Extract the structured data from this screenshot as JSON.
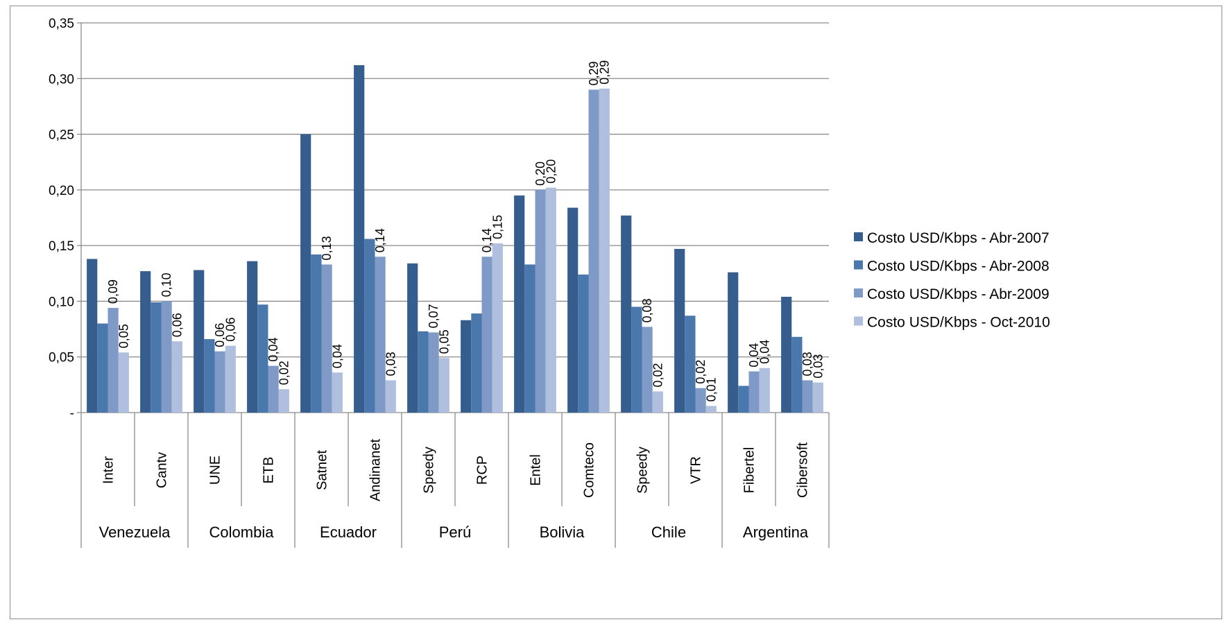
{
  "chart_data": {
    "type": "bar",
    "title": "",
    "xlabel": "",
    "ylabel": "",
    "ylim": [
      0,
      0.35
    ],
    "yticks": [
      {
        "value": 0,
        "label": "-"
      },
      {
        "value": 0.05,
        "label": "0,05"
      },
      {
        "value": 0.1,
        "label": "0,10"
      },
      {
        "value": 0.15,
        "label": "0,15"
      },
      {
        "value": 0.2,
        "label": "0,20"
      },
      {
        "value": 0.25,
        "label": "0,25"
      },
      {
        "value": 0.3,
        "label": "0,30"
      },
      {
        "value": 0.35,
        "label": "0,35"
      }
    ],
    "grid": true,
    "legend_position": "right",
    "categories": [
      "Inter",
      "Cantv",
      "UNE",
      "ETB",
      "Satnet",
      "Andinanet",
      "Speedy",
      "RCP",
      "Entel",
      "Comteco",
      "Speedy",
      "VTR",
      "Fibertel",
      "Cibersoft"
    ],
    "groups": [
      {
        "name": "Venezuela",
        "size": 2
      },
      {
        "name": "Colombia",
        "size": 2
      },
      {
        "name": "Ecuador",
        "size": 2
      },
      {
        "name": "Perú",
        "size": 2
      },
      {
        "name": "Bolivia",
        "size": 2
      },
      {
        "name": "Chile",
        "size": 2
      },
      {
        "name": "Argentina",
        "size": 2
      }
    ],
    "series": [
      {
        "name": "Costo USD/Kbps - Abr-2007",
        "color": "#355d8e",
        "values": [
          0.138,
          0.127,
          0.128,
          0.136,
          0.25,
          0.312,
          0.134,
          0.083,
          0.195,
          0.184,
          0.177,
          0.147,
          0.126,
          0.104
        ]
      },
      {
        "name": "Costo USD/Kbps - Abr-2008",
        "color": "#4a77ac",
        "values": [
          0.08,
          0.099,
          0.066,
          0.097,
          0.142,
          0.156,
          0.073,
          0.089,
          0.133,
          0.124,
          0.095,
          0.087,
          0.024,
          0.068
        ]
      },
      {
        "name": "Costo USD/Kbps - Abr-2009",
        "color": "#7f9ac6",
        "values": [
          0.094,
          0.1,
          0.055,
          0.042,
          0.133,
          0.14,
          0.072,
          0.14,
          0.2,
          0.29,
          0.077,
          0.022,
          0.037,
          0.029
        ]
      },
      {
        "name": "Costo USD/Kbps - Oct-2010",
        "color": "#afbfdd",
        "values": [
          0.054,
          0.064,
          0.06,
          0.021,
          0.036,
          0.029,
          0.049,
          0.152,
          0.202,
          0.291,
          0.019,
          0.006,
          0.04,
          0.027
        ]
      }
    ],
    "data_labels": [
      {
        "category_index": 0,
        "series_index": 2,
        "text": "0,09"
      },
      {
        "category_index": 0,
        "series_index": 3,
        "text": "0,05"
      },
      {
        "category_index": 1,
        "series_index": 2,
        "text": "0,10"
      },
      {
        "category_index": 1,
        "series_index": 3,
        "text": "0,06"
      },
      {
        "category_index": 2,
        "series_index": 2,
        "text": "0,06"
      },
      {
        "category_index": 2,
        "series_index": 3,
        "text": "0,06"
      },
      {
        "category_index": 3,
        "series_index": 2,
        "text": "0,04"
      },
      {
        "category_index": 3,
        "series_index": 3,
        "text": "0,02"
      },
      {
        "category_index": 4,
        "series_index": 2,
        "text": "0,13"
      },
      {
        "category_index": 4,
        "series_index": 3,
        "text": "0,04"
      },
      {
        "category_index": 5,
        "series_index": 2,
        "text": "0,14"
      },
      {
        "category_index": 5,
        "series_index": 3,
        "text": "0,03"
      },
      {
        "category_index": 6,
        "series_index": 2,
        "text": "0,07"
      },
      {
        "category_index": 6,
        "series_index": 3,
        "text": "0,05"
      },
      {
        "category_index": 7,
        "series_index": 2,
        "text": "0,14"
      },
      {
        "category_index": 7,
        "series_index": 3,
        "text": "0,15"
      },
      {
        "category_index": 8,
        "series_index": 2,
        "text": "0,20"
      },
      {
        "category_index": 8,
        "series_index": 3,
        "text": "0,20"
      },
      {
        "category_index": 9,
        "series_index": 2,
        "text": "0,29"
      },
      {
        "category_index": 9,
        "series_index": 3,
        "text": "0,29"
      },
      {
        "category_index": 10,
        "series_index": 2,
        "text": "0,08"
      },
      {
        "category_index": 10,
        "series_index": 3,
        "text": "0,02"
      },
      {
        "category_index": 11,
        "series_index": 2,
        "text": "0,02"
      },
      {
        "category_index": 11,
        "series_index": 3,
        "text": "0,01"
      },
      {
        "category_index": 12,
        "series_index": 2,
        "text": "0,04"
      },
      {
        "category_index": 12,
        "series_index": 3,
        "text": "0,04"
      },
      {
        "category_index": 13,
        "series_index": 2,
        "text": "0,03"
      },
      {
        "category_index": 13,
        "series_index": 3,
        "text": "0,03"
      }
    ]
  }
}
